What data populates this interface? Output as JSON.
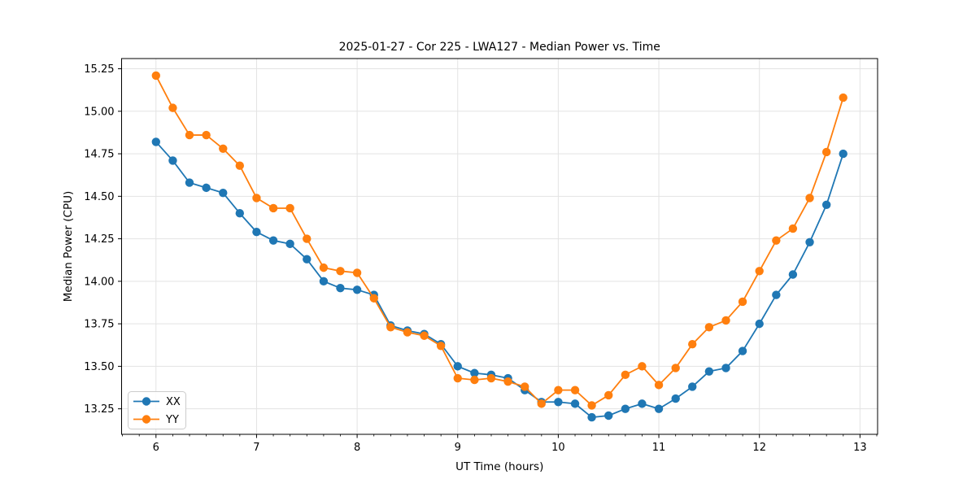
{
  "chart_data": {
    "type": "line",
    "title": "2025-01-27 - Cor 225 - LWA127 - Median Power vs. Time",
    "xlabel": "UT Time (hours)",
    "ylabel": "Median Power (CPU)",
    "xlim": [
      5.658,
      13.175
    ],
    "ylim": [
      13.1,
      15.31
    ],
    "x_ticks": [
      6,
      7,
      8,
      9,
      10,
      11,
      12,
      13
    ],
    "y_ticks": [
      13.25,
      13.5,
      13.75,
      14.0,
      14.25,
      14.5,
      14.75,
      15.0,
      15.25
    ],
    "x_minor_tick_step": 0.16667,
    "grid": true,
    "legend_position": "lower-left",
    "background": "#ffffff",
    "grid_color": "#e3e3e3",
    "spine_color": "#000000",
    "x": [
      6.0,
      6.167,
      6.333,
      6.5,
      6.667,
      6.833,
      7.0,
      7.167,
      7.333,
      7.5,
      7.667,
      7.833,
      8.0,
      8.167,
      8.333,
      8.5,
      8.667,
      8.833,
      9.0,
      9.167,
      9.333,
      9.5,
      9.667,
      9.833,
      10.0,
      10.167,
      10.333,
      10.5,
      10.667,
      10.833,
      11.0,
      11.167,
      11.333,
      11.5,
      11.667,
      11.833,
      12.0,
      12.167,
      12.333,
      12.5,
      12.667,
      12.833
    ],
    "series": [
      {
        "name": "XX",
        "color": "#1f77b4",
        "values": [
          14.82,
          14.71,
          14.58,
          14.55,
          14.52,
          14.4,
          14.29,
          14.24,
          14.22,
          14.13,
          14.0,
          13.96,
          13.95,
          13.92,
          13.74,
          13.71,
          13.69,
          13.63,
          13.5,
          13.46,
          13.45,
          13.43,
          13.36,
          13.29,
          13.29,
          13.28,
          13.2,
          13.21,
          13.25,
          13.28,
          13.25,
          13.31,
          13.38,
          13.47,
          13.49,
          13.59,
          13.75,
          13.92,
          14.04,
          14.23,
          14.45,
          14.75
        ]
      },
      {
        "name": "YY",
        "color": "#ff7f0e",
        "values": [
          15.21,
          15.02,
          14.86,
          14.86,
          14.78,
          14.68,
          14.49,
          14.43,
          14.43,
          14.25,
          14.08,
          14.06,
          14.05,
          13.9,
          13.73,
          13.7,
          13.68,
          13.62,
          13.43,
          13.42,
          13.43,
          13.41,
          13.38,
          13.28,
          13.36,
          13.36,
          13.27,
          13.33,
          13.45,
          13.5,
          13.39,
          13.49,
          13.63,
          13.73,
          13.77,
          13.88,
          14.06,
          14.24,
          14.31,
          14.49,
          14.76,
          15.08
        ]
      }
    ]
  }
}
